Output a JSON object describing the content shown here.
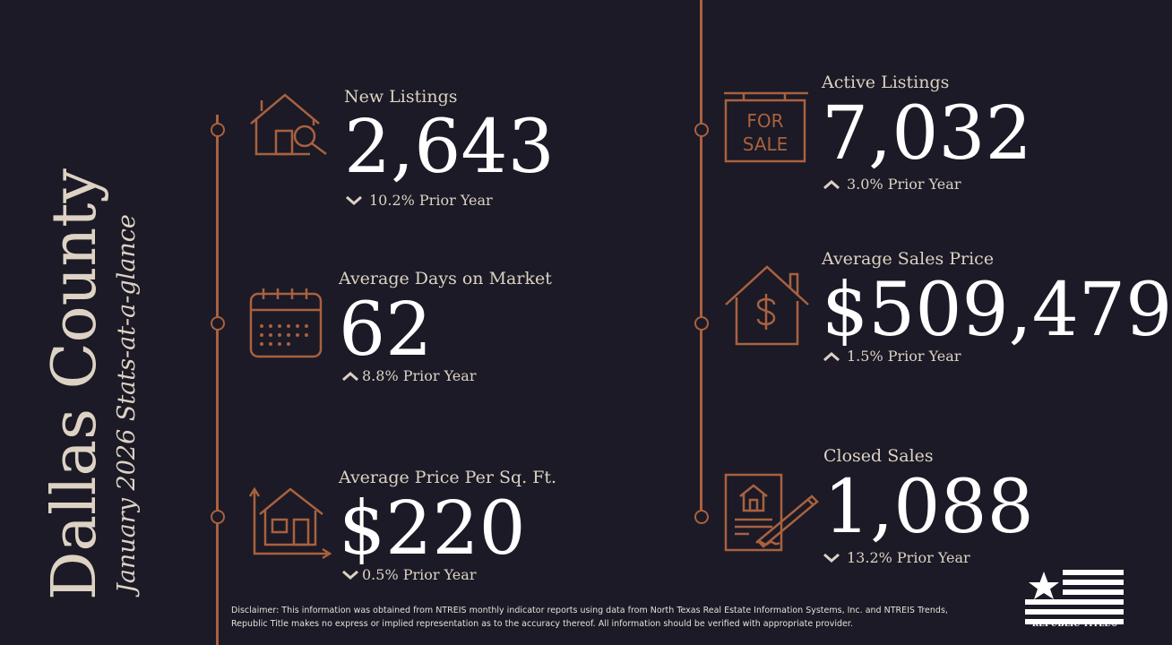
{
  "title": {
    "county": "Dallas County",
    "subtitle": "January 2026 Stats-at-a-glance"
  },
  "stats": {
    "new_listings": {
      "label": "New Listings",
      "value": "2,643",
      "change": "10.2% Prior Year",
      "direction": "down",
      "icon": "house-search-icon"
    },
    "avg_days": {
      "label": "Average Days on Market",
      "value": "62",
      "change": "8.8% Prior Year",
      "direction": "up",
      "icon": "calendar-icon"
    },
    "price_sqft": {
      "label": "Average Price Per Sq. Ft.",
      "value": "$220",
      "change": "0.5% Prior Year",
      "direction": "down",
      "icon": "house-measure-icon"
    },
    "active_listings": {
      "label": "Active Listings",
      "value": "7,032",
      "change": "3.0% Prior Year",
      "direction": "up",
      "icon": "for-sale-sign-icon",
      "sign_line1": "FOR",
      "sign_line2": "SALE"
    },
    "avg_sales_price": {
      "label": "Average Sales Price",
      "value": "$509,479",
      "change": "1.5% Prior Year",
      "direction": "up",
      "icon": "house-dollar-icon"
    },
    "closed_sales": {
      "label": "Closed Sales",
      "value": "1,088",
      "change": "13.2% Prior Year",
      "direction": "down",
      "icon": "signed-contract-icon"
    }
  },
  "disclaimer": "Disclaimer: This information was obtained from NTREIS monthly indicator reports using data from North Texas Real Estate Information Systems, Inc. and NTREIS Trends, Republic Title makes no express or implied representation as to the accuracy thereof. All information should be verified with appropriate provider.",
  "logo_text": "REPUBLIC TITLE®",
  "colors": {
    "background": "#1b1a26",
    "accent": "#a9613f",
    "text_light": "#ddd2c3",
    "value": "#ffffff"
  }
}
